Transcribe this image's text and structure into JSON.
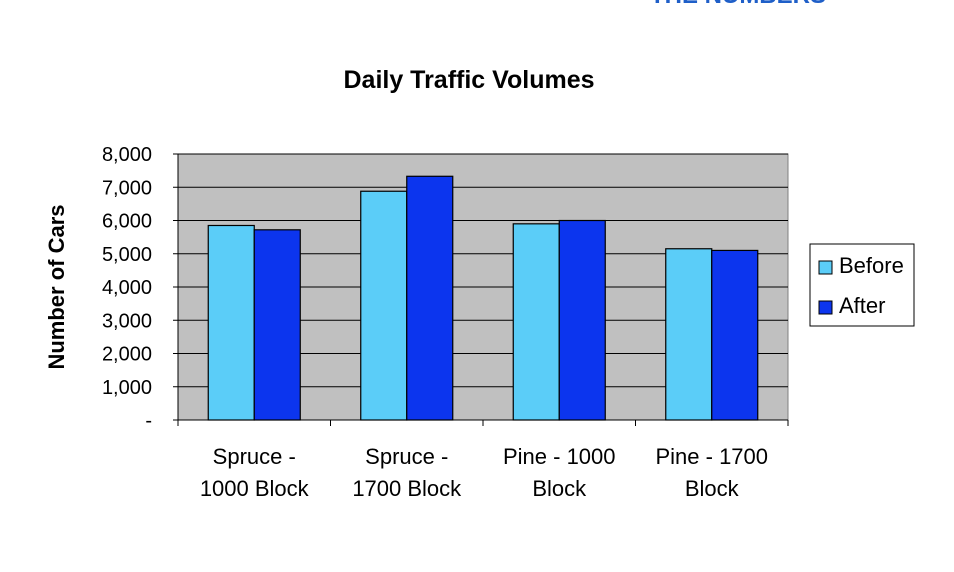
{
  "header_fragment": "THE NUMBERS",
  "chart_data": {
    "type": "bar",
    "title": "Daily Traffic Volumes",
    "ylabel": "Number of Cars",
    "xlabel": "",
    "ylim": [
      0,
      8000
    ],
    "yticks": [
      {
        "value": 0,
        "label": "-"
      },
      {
        "value": 1000,
        "label": "1,000"
      },
      {
        "value": 2000,
        "label": "2,000"
      },
      {
        "value": 3000,
        "label": "3,000"
      },
      {
        "value": 4000,
        "label": "4,000"
      },
      {
        "value": 5000,
        "label": "5,000"
      },
      {
        "value": 6000,
        "label": "6,000"
      },
      {
        "value": 7000,
        "label": "7,000"
      },
      {
        "value": 8000,
        "label": "8,000"
      }
    ],
    "categories": [
      [
        "Spruce -",
        "1000 Block"
      ],
      [
        "Spruce -",
        "1700 Block"
      ],
      [
        "Pine - 1000",
        "Block"
      ],
      [
        "Pine - 1700",
        "Block"
      ]
    ],
    "series": [
      {
        "name": "Before",
        "color": "#5bcdf8",
        "values": [
          5850,
          6880,
          5900,
          5150
        ]
      },
      {
        "name": "After",
        "color": "#0c35ee",
        "values": [
          5720,
          7330,
          6000,
          5100
        ]
      }
    ],
    "grid": true,
    "legend": "right",
    "plot_background": "#c0c0c0"
  }
}
